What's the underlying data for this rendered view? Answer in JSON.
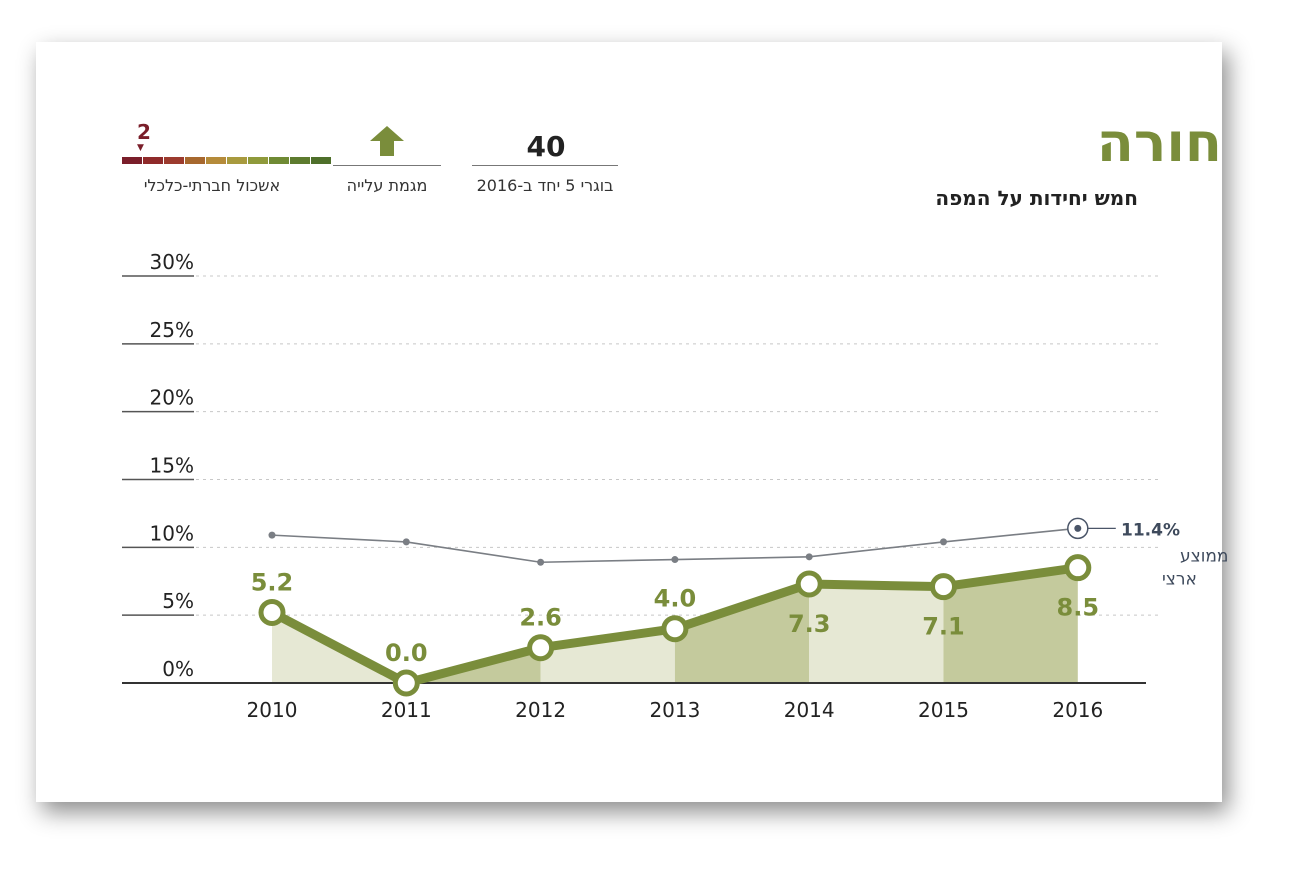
{
  "header": {
    "title": "חורה",
    "subtitle": "חמש יחידות על המפה"
  },
  "stats": {
    "graduates_value": "40",
    "graduates_label": "בוגרי 5 יחד ב-2016",
    "trend_label": "מגמת עלייה",
    "trend_icon": "arrow-up-icon",
    "cluster_value": "2",
    "cluster_label": "אשכול חברתי-כלכלי",
    "cluster_colors": [
      "#7a1e2a",
      "#8f2a2a",
      "#9c3b2e",
      "#a7682e",
      "#b58b3a",
      "#a89a3e",
      "#8f9a3b",
      "#6f8a34",
      "#5d7b2e",
      "#4e6f2a"
    ]
  },
  "colors": {
    "accent": "#7a8d3b",
    "national": "#7a7e84",
    "area_light": "#e6e8d4",
    "area_dark": "#c4ca9d"
  },
  "chart_data": {
    "type": "line",
    "categories": [
      "2010",
      "2011",
      "2012",
      "2013",
      "2014",
      "2015",
      "2016"
    ],
    "series": [
      {
        "values": [
          5.2,
          0.0,
          2.6,
          4.0,
          7.3,
          7.1,
          8.5
        ]
      },
      {
        "name": "ממוצע ארצי",
        "values": [
          10.9,
          10.4,
          8.9,
          9.1,
          9.3,
          10.4,
          11.4
        ]
      }
    ],
    "data_labels": [
      "5.2",
      "0.0",
      "2.6",
      "4.0",
      "7.3",
      "7.1",
      "8.5"
    ],
    "y_ticks": [
      "0%",
      "5%",
      "10%",
      "15%",
      "20%",
      "25%",
      "30%"
    ],
    "ylim": [
      0,
      30
    ],
    "national_label_value": "11.4%",
    "national_label_line1": "ממוצע",
    "national_label_line2": "ארצי",
    "grid": true
  }
}
